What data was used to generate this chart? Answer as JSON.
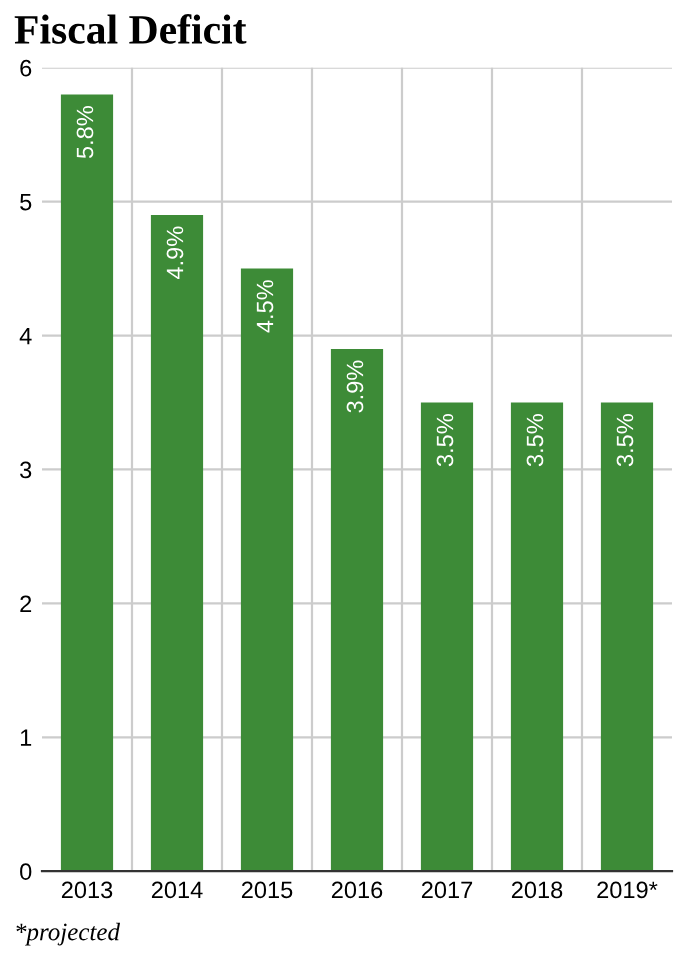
{
  "chart_data": {
    "type": "bar",
    "title": "Fiscal Deficit",
    "categories": [
      "2013",
      "2014",
      "2015",
      "2016",
      "2017",
      "2018",
      "2019*"
    ],
    "values": [
      5.8,
      4.9,
      4.5,
      3.9,
      3.5,
      3.5,
      3.5
    ],
    "value_labels": [
      "5.8%",
      "4.9%",
      "4.5%",
      "3.9%",
      "3.5%",
      "3.5%",
      "3.5%"
    ],
    "color": "#3d8b37",
    "ylim": [
      0,
      6
    ],
    "yticks": [
      0,
      1,
      2,
      3,
      4,
      5,
      6
    ],
    "grid": true,
    "annotations": [
      "*projected"
    ]
  }
}
